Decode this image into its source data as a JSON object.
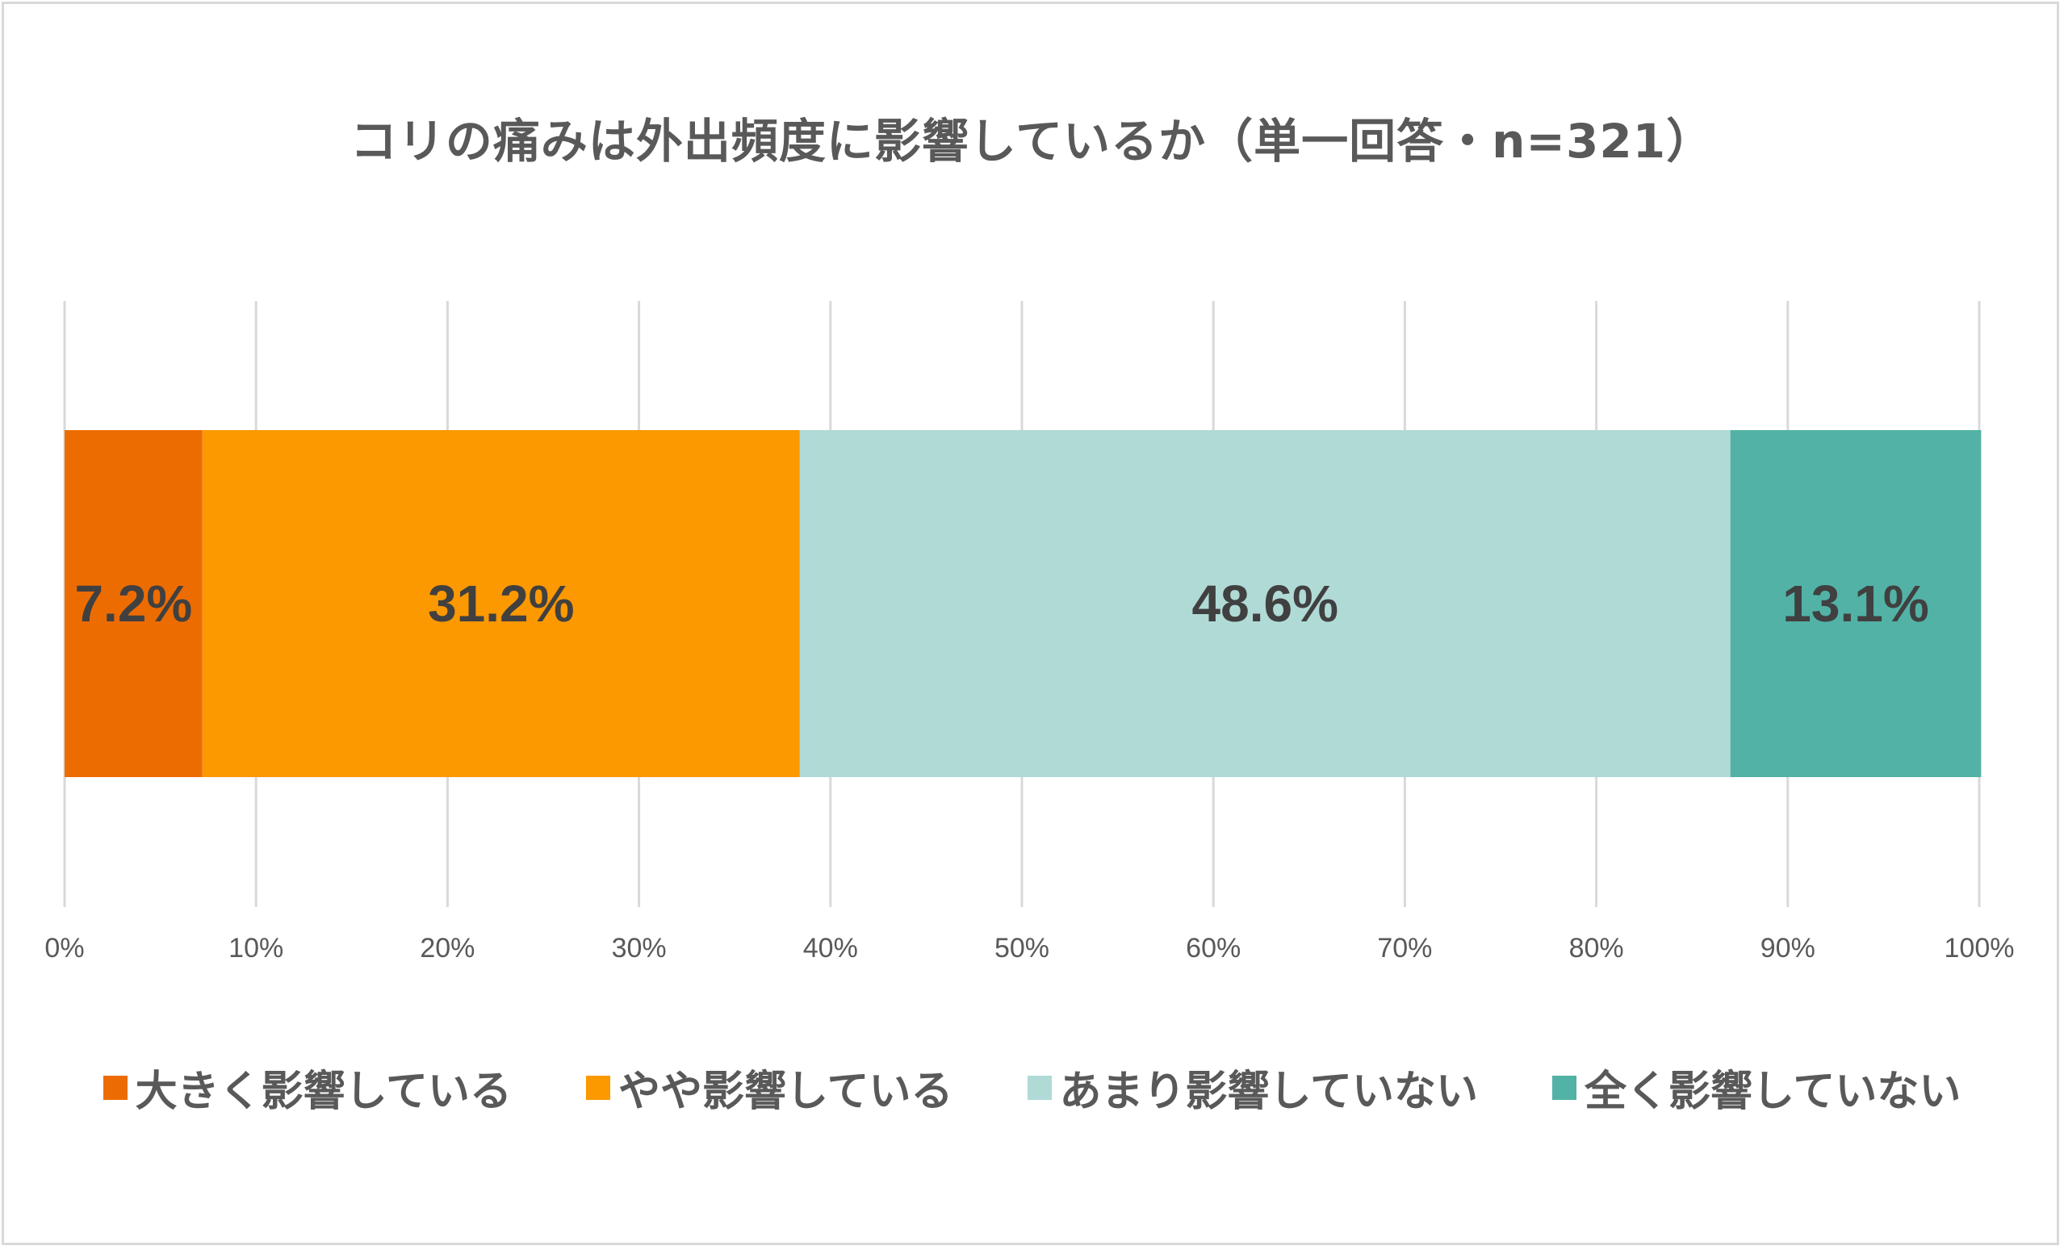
{
  "chart_data": {
    "type": "bar",
    "orientation": "horizontal-stacked-100",
    "title": "コリの痛みは外出頻度に影響しているか（単一回答・n=321）",
    "xlim": [
      0,
      100
    ],
    "x_ticks": [
      "0%",
      "10%",
      "20%",
      "30%",
      "40%",
      "50%",
      "60%",
      "70%",
      "80%",
      "90%",
      "100%"
    ],
    "grid": true,
    "legend_placement": "bottom",
    "series": [
      {
        "name": "大きく影響している",
        "values": [
          7.2
        ],
        "label": "7.2%",
        "color": "#ed6c02"
      },
      {
        "name": "やや影響している",
        "values": [
          31.2
        ],
        "label": "31.2%",
        "color": "#fc9800"
      },
      {
        "name": "あまり影響していない",
        "values": [
          48.6
        ],
        "label": "48.6%",
        "color": "#b0dad6"
      },
      {
        "name": "全く影響していない",
        "values": [
          13.1
        ],
        "label": "13.1%",
        "color": "#52b2a6"
      }
    ]
  }
}
